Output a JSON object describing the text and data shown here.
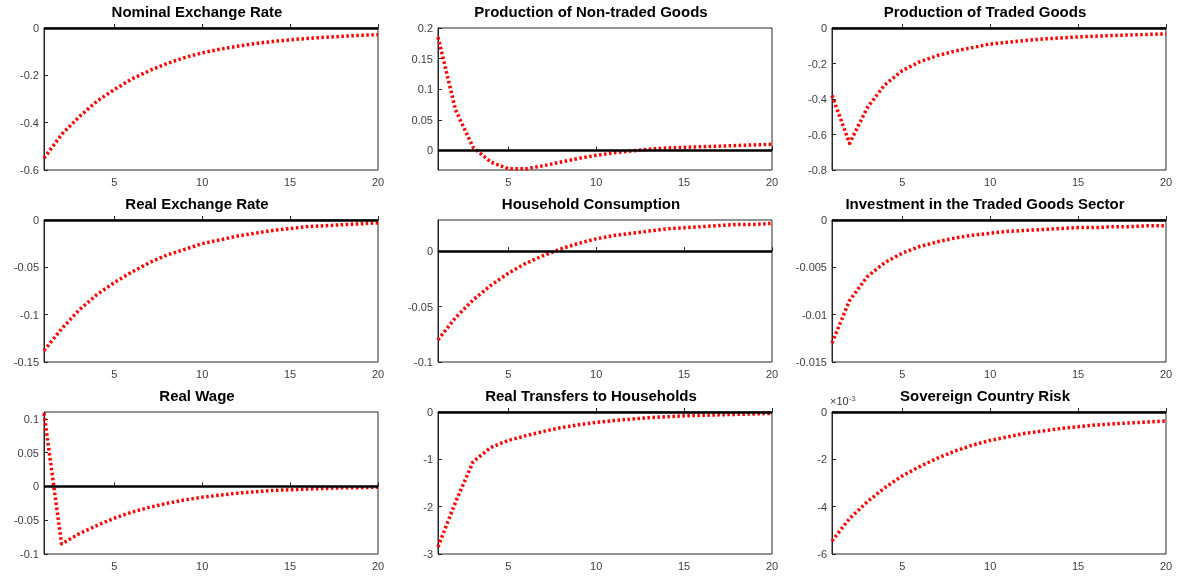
{
  "chart_data": [
    {
      "type": "line",
      "title": "Nominal Exchange Rate",
      "x": [
        1,
        2,
        3,
        4,
        5,
        6,
        7,
        8,
        9,
        10,
        11,
        12,
        13,
        14,
        15,
        16,
        17,
        18,
        19,
        20
      ],
      "xlim": [
        1,
        20
      ],
      "xticks": [
        5,
        10,
        15,
        20
      ],
      "ylim": [
        -0.6,
        0
      ],
      "yticks": [
        -0.6,
        -0.4,
        -0.2,
        0
      ],
      "line_style": "dotted",
      "ref_lines": [
        {
          "axis": "y",
          "value": 0,
          "color": "#000000"
        }
      ],
      "series": [
        {
          "color": "#ff0000",
          "values": [
            -0.55,
            -0.45,
            -0.375,
            -0.31,
            -0.26,
            -0.215,
            -0.18,
            -0.15,
            -0.125,
            -0.105,
            -0.09,
            -0.077,
            -0.066,
            -0.057,
            -0.05,
            -0.044,
            -0.039,
            -0.035,
            -0.031,
            -0.028
          ]
        }
      ]
    },
    {
      "type": "line",
      "title": "Production of Non-traded Goods",
      "x": [
        1,
        2,
        3,
        4,
        5,
        6,
        7,
        8,
        9,
        10,
        11,
        12,
        13,
        14,
        15,
        16,
        17,
        18,
        19,
        20
      ],
      "xlim": [
        1,
        20
      ],
      "xticks": [
        5,
        10,
        15,
        20
      ],
      "ylim": [
        -0.032,
        0.2
      ],
      "yticks": [
        0,
        0.05,
        0.1,
        0.15,
        0.2
      ],
      "line_style": "dotted",
      "ref_lines": [
        {
          "axis": "y",
          "value": 0,
          "color": "#000000"
        }
      ],
      "series": [
        {
          "color": "#ff0000",
          "values": [
            0.185,
            0.066,
            0.005,
            -0.019,
            -0.03,
            -0.03,
            -0.025,
            -0.019,
            -0.013,
            -0.008,
            -0.004,
            -0.001,
            0.002,
            0.004,
            0.005,
            0.006,
            0.007,
            0.008,
            0.009,
            0.01
          ]
        }
      ]
    },
    {
      "type": "line",
      "title": "Production of Traded Goods",
      "x": [
        1,
        2,
        3,
        4,
        5,
        6,
        7,
        8,
        9,
        10,
        11,
        12,
        13,
        14,
        15,
        16,
        17,
        18,
        19,
        20
      ],
      "xlim": [
        1,
        20
      ],
      "xticks": [
        5,
        10,
        15,
        20
      ],
      "ylim": [
        -0.8,
        0
      ],
      "yticks": [
        -0.8,
        -0.6,
        -0.4,
        -0.2,
        0
      ],
      "line_style": "dotted",
      "ref_lines": [
        {
          "axis": "y",
          "value": 0,
          "color": "#000000"
        }
      ],
      "series": [
        {
          "color": "#ff0000",
          "values": [
            -0.38,
            -0.65,
            -0.45,
            -0.32,
            -0.24,
            -0.19,
            -0.155,
            -0.13,
            -0.11,
            -0.09,
            -0.08,
            -0.07,
            -0.062,
            -0.056,
            -0.05,
            -0.046,
            -0.042,
            -0.039,
            -0.036,
            -0.033
          ]
        }
      ]
    },
    {
      "type": "line",
      "title": "Real Exchange Rate",
      "x": [
        1,
        2,
        3,
        4,
        5,
        6,
        7,
        8,
        9,
        10,
        11,
        12,
        13,
        14,
        15,
        16,
        17,
        18,
        19,
        20
      ],
      "xlim": [
        1,
        20
      ],
      "xticks": [
        5,
        10,
        15,
        20
      ],
      "ylim": [
        -0.15,
        0
      ],
      "yticks": [
        -0.15,
        -0.1,
        -0.05,
        0
      ],
      "line_style": "dotted",
      "ref_lines": [
        {
          "axis": "y",
          "value": 0,
          "color": "#000000"
        }
      ],
      "series": [
        {
          "color": "#ff0000",
          "values": [
            -0.138,
            -0.115,
            -0.095,
            -0.079,
            -0.066,
            -0.055,
            -0.045,
            -0.037,
            -0.031,
            -0.025,
            -0.021,
            -0.017,
            -0.014,
            -0.011,
            -0.009,
            -0.007,
            -0.006,
            -0.005,
            -0.004,
            -0.003
          ]
        }
      ]
    },
    {
      "type": "line",
      "title": "Household Consumption",
      "x": [
        1,
        2,
        3,
        4,
        5,
        6,
        7,
        8,
        9,
        10,
        11,
        12,
        13,
        14,
        15,
        16,
        17,
        18,
        19,
        20
      ],
      "xlim": [
        1,
        20
      ],
      "xticks": [
        5,
        10,
        15,
        20
      ],
      "ylim": [
        -0.1,
        0.028
      ],
      "yticks": [
        -0.1,
        -0.05,
        0
      ],
      "line_style": "dotted",
      "ref_lines": [
        {
          "axis": "y",
          "value": 0,
          "color": "#000000"
        }
      ],
      "series": [
        {
          "color": "#ff0000",
          "values": [
            -0.08,
            -0.06,
            -0.044,
            -0.031,
            -0.02,
            -0.011,
            -0.004,
            0.002,
            0.007,
            0.011,
            0.014,
            0.016,
            0.018,
            0.02,
            0.021,
            0.022,
            0.023,
            0.024,
            0.024,
            0.025
          ]
        }
      ]
    },
    {
      "type": "line",
      "title": "Investment in the Traded Goods Sector",
      "x": [
        1,
        2,
        3,
        4,
        5,
        6,
        7,
        8,
        9,
        10,
        11,
        12,
        13,
        14,
        15,
        16,
        17,
        18,
        19,
        20
      ],
      "xlim": [
        1,
        20
      ],
      "xticks": [
        5,
        10,
        15,
        20
      ],
      "ylim": [
        -0.015,
        0
      ],
      "yticks": [
        -0.015,
        -0.01,
        -0.005,
        0
      ],
      "line_style": "dotted",
      "ref_lines": [
        {
          "axis": "y",
          "value": 0,
          "color": "#000000"
        }
      ],
      "series": [
        {
          "color": "#ff0000",
          "values": [
            -0.013,
            -0.0085,
            -0.006,
            -0.0045,
            -0.0035,
            -0.0028,
            -0.0023,
            -0.0019,
            -0.0016,
            -0.0014,
            -0.0012,
            -0.0011,
            -0.001,
            -0.0009,
            -0.0008,
            -0.0008,
            -0.0007,
            -0.0007,
            -0.0006,
            -0.0006
          ]
        }
      ]
    },
    {
      "type": "line",
      "title": "Real Wage",
      "x": [
        1,
        2,
        3,
        4,
        5,
        6,
        7,
        8,
        9,
        10,
        11,
        12,
        13,
        14,
        15,
        16,
        17,
        18,
        19,
        20
      ],
      "xlim": [
        1,
        20
      ],
      "xticks": [
        5,
        10,
        15,
        20
      ],
      "ylim": [
        -0.1,
        0.11
      ],
      "yticks": [
        -0.1,
        -0.05,
        0,
        0.05,
        0.1
      ],
      "line_style": "dotted",
      "ref_lines": [
        {
          "axis": "y",
          "value": 0,
          "color": "#000000"
        }
      ],
      "series": [
        {
          "color": "#ff0000",
          "values": [
            0.108,
            -0.085,
            -0.07,
            -0.058,
            -0.047,
            -0.038,
            -0.031,
            -0.025,
            -0.02,
            -0.016,
            -0.013,
            -0.01,
            -0.008,
            -0.006,
            -0.005,
            -0.004,
            -0.003,
            -0.002,
            -0.002,
            -0.001
          ]
        }
      ]
    },
    {
      "type": "line",
      "title": "Real Transfers to Households",
      "x": [
        1,
        2,
        3,
        4,
        5,
        6,
        7,
        8,
        9,
        10,
        11,
        12,
        13,
        14,
        15,
        16,
        17,
        18,
        19,
        20
      ],
      "xlim": [
        1,
        20
      ],
      "xticks": [
        5,
        10,
        15,
        20
      ],
      "ylim": [
        -3,
        0
      ],
      "yticks": [
        -3,
        -2,
        -1,
        0
      ],
      "line_style": "dotted",
      "ref_lines": [
        {
          "axis": "y",
          "value": 0,
          "color": "#000000"
        }
      ],
      "series": [
        {
          "color": "#ff0000",
          "values": [
            -2.85,
            -1.9,
            -1.05,
            -0.75,
            -0.6,
            -0.5,
            -0.41,
            -0.33,
            -0.27,
            -0.22,
            -0.18,
            -0.15,
            -0.12,
            -0.1,
            -0.08,
            -0.07,
            -0.06,
            -0.05,
            -0.04,
            -0.03
          ]
        }
      ]
    },
    {
      "type": "line",
      "title": "Sovereign Country Risk",
      "annotations": [
        "×10$^{-3}$"
      ],
      "x": [
        1,
        2,
        3,
        4,
        5,
        6,
        7,
        8,
        9,
        10,
        11,
        12,
        13,
        14,
        15,
        16,
        17,
        18,
        19,
        20
      ],
      "xlim": [
        1,
        20
      ],
      "xticks": [
        5,
        10,
        15,
        20
      ],
      "ylim": [
        -6,
        0
      ],
      "yticks": [
        -6,
        -4,
        -2,
        0
      ],
      "line_style": "dotted",
      "ref_lines": [
        {
          "axis": "y",
          "value": 0,
          "color": "#000000"
        }
      ],
      "series": [
        {
          "color": "#ff0000",
          "values": [
            -5.45,
            -4.5,
            -3.8,
            -3.2,
            -2.7,
            -2.3,
            -1.95,
            -1.65,
            -1.4,
            -1.2,
            -1.05,
            -0.9,
            -0.8,
            -0.7,
            -0.62,
            -0.55,
            -0.5,
            -0.46,
            -0.42,
            -0.38
          ]
        }
      ]
    }
  ]
}
